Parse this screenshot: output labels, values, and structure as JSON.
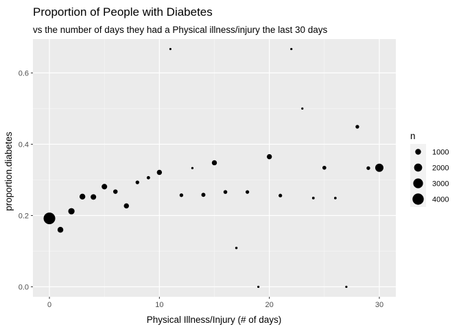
{
  "chart_data": {
    "type": "scatter",
    "title": "Proportion of People with Diabetes",
    "subtitle": "vs the number of days they had a Physical illness/injury the last 30 days",
    "xlabel": "Physical Illness/Injury (# of days)",
    "ylabel": "proportion.diabetes",
    "xlim": [
      -1.5,
      31.5
    ],
    "ylim": [
      -0.028,
      0.695
    ],
    "x_ticks": [
      0,
      10,
      20,
      30
    ],
    "y_ticks": [
      0.0,
      0.2,
      0.4,
      0.6
    ],
    "x_tick_labels": [
      "0",
      "10",
      "20",
      "30"
    ],
    "y_tick_labels": [
      "0.0",
      "0.2",
      "0.4",
      "0.6"
    ],
    "grid": true,
    "point_color": "#000000",
    "panel_color": "#ebebeb",
    "size_scale": {
      "min_n": 50,
      "max_n": 4300
    },
    "legend": {
      "title": "n",
      "position": "right",
      "entries": [
        {
          "label": "1000",
          "n": 1000
        },
        {
          "label": "2000",
          "n": 2000
        },
        {
          "label": "3000",
          "n": 3000
        },
        {
          "label": "4000",
          "n": 4000
        }
      ]
    },
    "points": [
      {
        "x": 0,
        "y": 0.192,
        "n": 4300
      },
      {
        "x": 1,
        "y": 0.16,
        "n": 1000
      },
      {
        "x": 2,
        "y": 0.212,
        "n": 1200
      },
      {
        "x": 3,
        "y": 0.253,
        "n": 1000
      },
      {
        "x": 4,
        "y": 0.252,
        "n": 900
      },
      {
        "x": 5,
        "y": 0.281,
        "n": 900
      },
      {
        "x": 6,
        "y": 0.267,
        "n": 550
      },
      {
        "x": 7,
        "y": 0.227,
        "n": 750
      },
      {
        "x": 8,
        "y": 0.293,
        "n": 350
      },
      {
        "x": 9,
        "y": 0.306,
        "n": 280
      },
      {
        "x": 10,
        "y": 0.321,
        "n": 750
      },
      {
        "x": 11,
        "y": 0.667,
        "n": 60
      },
      {
        "x": 12,
        "y": 0.257,
        "n": 350
      },
      {
        "x": 13,
        "y": 0.333,
        "n": 80
      },
      {
        "x": 14,
        "y": 0.258,
        "n": 450
      },
      {
        "x": 15,
        "y": 0.348,
        "n": 750
      },
      {
        "x": 16,
        "y": 0.266,
        "n": 380
      },
      {
        "x": 17,
        "y": 0.109,
        "n": 100
      },
      {
        "x": 18,
        "y": 0.266,
        "n": 330
      },
      {
        "x": 19,
        "y": 0.0,
        "n": 70
      },
      {
        "x": 20,
        "y": 0.365,
        "n": 750
      },
      {
        "x": 21,
        "y": 0.256,
        "n": 330
      },
      {
        "x": 22,
        "y": 0.667,
        "n": 70
      },
      {
        "x": 23,
        "y": 0.5,
        "n": 70
      },
      {
        "x": 24,
        "y": 0.249,
        "n": 130
      },
      {
        "x": 25,
        "y": 0.334,
        "n": 400
      },
      {
        "x": 26,
        "y": 0.249,
        "n": 120
      },
      {
        "x": 27,
        "y": 0.0,
        "n": 70
      },
      {
        "x": 28,
        "y": 0.449,
        "n": 350
      },
      {
        "x": 29,
        "y": 0.333,
        "n": 350
      },
      {
        "x": 30,
        "y": 0.334,
        "n": 2100
      }
    ]
  }
}
